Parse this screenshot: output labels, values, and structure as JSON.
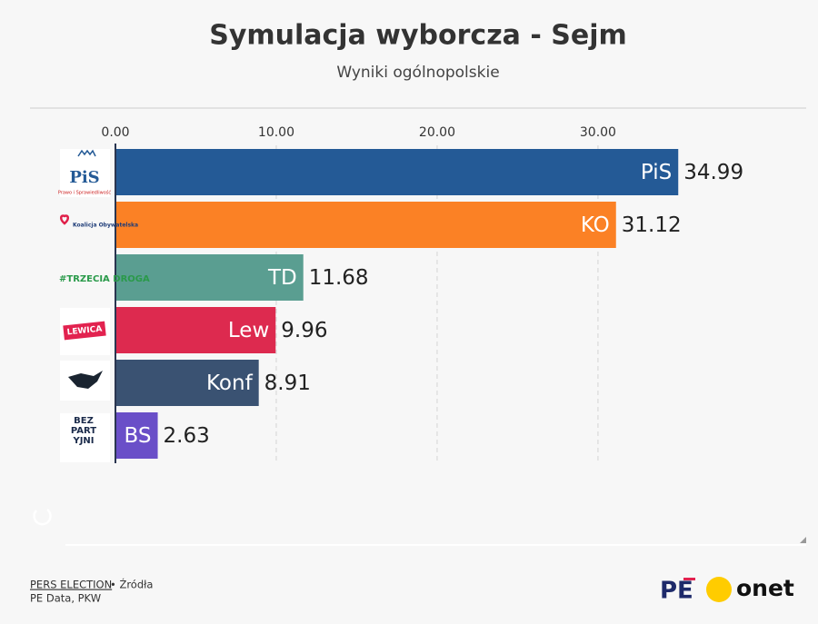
{
  "chart_data": {
    "type": "hbar",
    "title": "Symulacja wyborcza - Sejm",
    "subtitle": "Wyniki ogólnopolskie",
    "categories": [
      "PiS",
      "KO",
      "TD",
      "Lew",
      "Konf",
      "BS"
    ],
    "values": [
      34.99,
      31.12,
      11.68,
      9.96,
      8.91,
      2.63
    ],
    "colors": [
      "#245a96",
      "#fb8125",
      "#5a9e91",
      "#dd2a4f",
      "#3a5272",
      "#6a4fc8"
    ],
    "xlim": [
      0,
      43
    ],
    "xticks": [
      {
        "value": 0,
        "label": "0.00"
      },
      {
        "value": 10,
        "label": "10.00"
      },
      {
        "value": 20,
        "label": "20.00"
      },
      {
        "value": 30,
        "label": "30.00"
      }
    ],
    "grid": true
  },
  "logos": {
    "pis": "PiS",
    "pis_sub": "Prawo i Sprawiedliwość",
    "ko": "Koalicja Obywatelska",
    "td": "#TRZECIA DROGA",
    "lewica": "LEWICA",
    "bs": "BEZ PARTYJNI"
  },
  "footer": {
    "credit": "PERS ELECTION",
    "sources_label": "• Źródła",
    "sources": "PE Data, PKW",
    "brand_pe": "PE",
    "brand_onet": "onet"
  }
}
